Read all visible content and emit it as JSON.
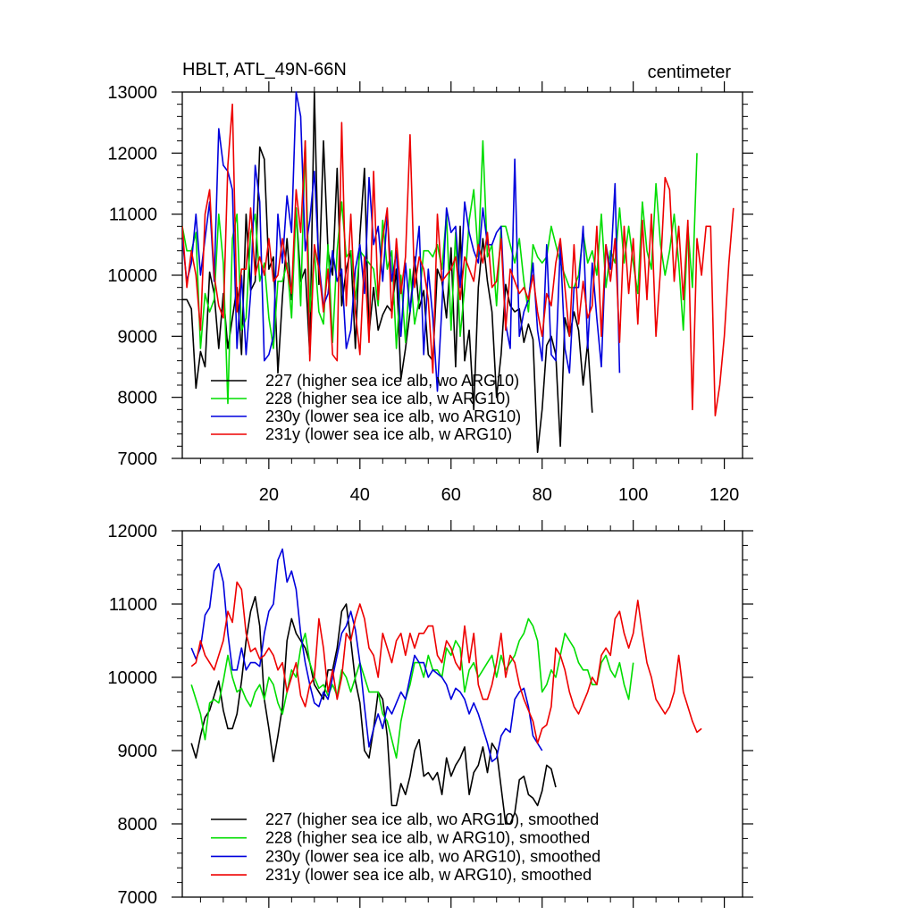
{
  "chart_data": [
    {
      "type": "line",
      "title": "HBLT, ATL_49N-66N",
      "units": "centimeter",
      "xlabel": "",
      "ylabel": "",
      "xlim": [
        1,
        124
      ],
      "ylim": [
        7000,
        13000
      ],
      "xticks": [
        20,
        40,
        60,
        80,
        100,
        120
      ],
      "yticks": [
        7000,
        8000,
        9000,
        10000,
        11000,
        12000,
        13000
      ],
      "x_tick_labels": [
        "20",
        "40",
        "60",
        "80",
        "100",
        "120"
      ],
      "y_tick_labels": [
        "7000",
        "8000",
        "9000",
        "10000",
        "11000",
        "12000",
        "13000"
      ],
      "legend_position": "bottom-left",
      "series": [
        {
          "name": "227 (higher sea ice alb, wo ARG10)",
          "color": "#000000",
          "x_start": 1,
          "values": [
            9600,
            9600,
            9450,
            8150,
            8750,
            8500,
            10050,
            9700,
            8800,
            9700,
            8800,
            9300,
            9800,
            8700,
            11000,
            9750,
            9900,
            12100,
            11900,
            10100,
            10300,
            8400,
            9650,
            10600,
            9600,
            11100,
            9900,
            10100,
            8700,
            13000,
            9850,
            12200,
            10400,
            10000,
            11750,
            9500,
            10100,
            10400,
            8800,
            10650,
            11750,
            9050,
            9800,
            9100,
            9350,
            9500,
            9400,
            10100,
            8300,
            8800,
            9400,
            10300,
            9450,
            9750,
            8700,
            8600,
            10100,
            9900,
            9300,
            10450,
            8500,
            10800,
            8600,
            9100,
            7800,
            9800,
            10600,
            9900,
            9400,
            8000,
            8700,
            9850,
            9500,
            9400,
            9450,
            8900,
            9200,
            8950,
            7100,
            7800,
            8850,
            9000,
            8700,
            7200,
            9300,
            9000,
            9400,
            9100,
            8200,
            8900,
            7750
          ]
        },
        {
          "name": "228 (higher sea ice alb, w ARG10)",
          "color": "#00dd00",
          "x_start": 1,
          "values": [
            10800,
            10400,
            10400,
            10700,
            8800,
            9700,
            9400,
            9600,
            11000,
            10200,
            7900,
            10600,
            11000,
            9100,
            9300,
            10700,
            11000,
            9900,
            10200,
            9300,
            8800,
            9900,
            9900,
            10200,
            9300,
            11100,
            9500,
            12200,
            9400,
            10400,
            9400,
            9200,
            10500,
            8900,
            10400,
            11200,
            10300,
            10400,
            9600,
            10400,
            10300,
            10200,
            10100,
            9500,
            10900,
            10100,
            10400,
            8800,
            10000,
            8900,
            10100,
            9200,
            9600,
            10400,
            10400,
            10300,
            10500,
            10100,
            11000,
            9100,
            10700,
            9000,
            9800,
            10900,
            11400,
            10300,
            12200,
            10300,
            10500,
            9500,
            10800,
            10800,
            10500,
            10200,
            10600,
            9900,
            9400,
            10500,
            10300,
            10200,
            10300,
            10800,
            10500,
            10200,
            10000,
            9800,
            9800,
            10000,
            10700,
            10200,
            10400,
            10000,
            11000,
            9800,
            10400,
            10200,
            11100,
            10200,
            10800,
            10200,
            9700,
            11200,
            10400,
            10100,
            11500,
            10500,
            10000,
            10400,
            11000,
            10200,
            9100,
            10800,
            9800,
            12000
          ]
        },
        {
          "name": "230y (lower sea ice alb, wo ARG10)",
          "color": "#0000dd",
          "x_start": 1,
          "values": [
            10600,
            9900,
            10200,
            11000,
            10000,
            10600,
            11200,
            9900,
            12400,
            11800,
            11700,
            11400,
            8800,
            10000,
            8700,
            9700,
            11800,
            11200,
            8600,
            8700,
            9000,
            11000,
            10200,
            11300,
            10700,
            13000,
            12600,
            10400,
            10900,
            11700,
            10200,
            9500,
            9700,
            10400,
            9900,
            10100,
            8800,
            9100,
            10100,
            10500,
            9700,
            11600,
            10500,
            10800,
            9900,
            11000,
            9900,
            10400,
            9000,
            10200,
            9400,
            10100,
            10800,
            8700,
            10100,
            9300,
            8100,
            9500,
            11100,
            10700,
            10800,
            9800,
            11200,
            10700,
            10400,
            10200,
            11100,
            10500,
            10500,
            10700,
            10800,
            9200,
            8800,
            11900,
            9000,
            9400,
            9600,
            10200,
            9100,
            8600,
            10500,
            8700,
            8600,
            10500,
            8800,
            8400,
            9800,
            9800,
            10800,
            8800,
            10200,
            9300,
            8500,
            10500,
            10100,
            11500,
            8400
          ]
        },
        {
          "name": "231y (lower sea ice alb, w ARG10)",
          "color": "#ee0000",
          "x_start": 1,
          "values": [
            10800,
            9800,
            10400,
            10000,
            9100,
            11000,
            11400,
            10000,
            9500,
            9300,
            11800,
            12800,
            9400,
            10100,
            10100,
            11100,
            10000,
            10300,
            10000,
            10600,
            9900,
            10000,
            10600,
            10100,
            9700,
            11400,
            10700,
            12200,
            8600,
            10500,
            10100,
            9400,
            10100,
            8700,
            8600,
            12500,
            9500,
            11000,
            9400,
            8700,
            10300,
            8900,
            11700,
            9600,
            10600,
            11100,
            9300,
            10600,
            9700,
            10300,
            12300,
            9800,
            10300,
            10100,
            9600,
            8400,
            11000,
            9900,
            10000,
            10100,
            10300,
            9600,
            10300,
            10100,
            9900,
            10500,
            10200,
            10700,
            9800,
            9900,
            10600,
            9100,
            10100,
            9900,
            9700,
            9800,
            9600,
            10000,
            9400,
            9000,
            9700,
            9500,
            10200,
            10600,
            9800,
            9000,
            10500,
            9200,
            9900,
            9300,
            9500,
            10800,
            9000,
            10500,
            9900,
            10600,
            8900,
            10800,
            9700,
            10600,
            9200,
            10900,
            9600,
            11000,
            9000,
            10100,
            11600,
            11400,
            9900,
            10800,
            9600,
            10900,
            7800,
            10600,
            10000,
            10800,
            10800,
            7700,
            8200,
            9000,
            10200,
            11100
          ]
        }
      ]
    },
    {
      "type": "line",
      "title": "",
      "xlabel": "",
      "ylabel": "",
      "xlim": [
        1,
        124
      ],
      "ylim": [
        7000,
        12000
      ],
      "xticks": [
        20,
        40,
        60,
        80,
        100,
        120
      ],
      "yticks": [
        7000,
        8000,
        9000,
        10000,
        11000,
        12000
      ],
      "y_tick_labels": [
        "7000",
        "8000",
        "9000",
        "10000",
        "11000",
        "12000"
      ],
      "legend_position": "bottom-left",
      "series": [
        {
          "name": "227 (higher sea ice alb, wo ARG10), smoothed",
          "color": "#000000",
          "x_start": 3,
          "values": [
            9100,
            8900,
            9200,
            9450,
            9550,
            9750,
            9950,
            9550,
            9300,
            9300,
            9500,
            9950,
            10500,
            10900,
            11100,
            10700,
            9700,
            9300,
            8850,
            9200,
            9600,
            10500,
            10800,
            10600,
            10500,
            10400,
            10200,
            9900,
            9800,
            9700,
            10100,
            10100,
            10400,
            10900,
            11000,
            10500,
            9950,
            9650,
            9000,
            8900,
            9300,
            9800,
            9700,
            9200,
            8250,
            8250,
            8550,
            8400,
            8650,
            9000,
            9150,
            8650,
            8700,
            8600,
            8700,
            8400,
            8900,
            8650,
            8800,
            8900,
            9050,
            8400,
            8700,
            8800,
            9050,
            8700,
            9100,
            9000,
            8500,
            8000,
            8000,
            8150,
            8600,
            8650,
            8400,
            8350,
            8250,
            8450,
            8800,
            8750,
            8500
          ]
        },
        {
          "name": "228 (higher sea ice alb, w ARG10), smoothed",
          "color": "#00dd00",
          "x_start": 3,
          "values": [
            9900,
            9700,
            9500,
            9150,
            9650,
            9700,
            9650,
            9950,
            10300,
            10000,
            9800,
            9850,
            9700,
            9600,
            9800,
            9900,
            9700,
            10000,
            9900,
            9650,
            9500,
            9800,
            10100,
            10000,
            10400,
            10600,
            10200,
            10000,
            9850,
            9900,
            9750,
            9900,
            9750,
            10100,
            10000,
            9800,
            10000,
            10200,
            10000,
            9800,
            9800,
            9800,
            9500,
            9400,
            9150,
            8900,
            9400,
            9700,
            9900,
            10200,
            10200,
            10000,
            10300,
            10100,
            10100,
            10000,
            10400,
            10300,
            10500,
            10400,
            9800,
            10100,
            10200,
            10000,
            10100,
            10200,
            10300,
            10000,
            10300,
            10100,
            10200,
            10300,
            10500,
            10600,
            10800,
            10700,
            10500,
            9800,
            9900,
            10100,
            10000,
            10300,
            10600,
            10500,
            10400,
            10200,
            10100,
            10100,
            9900,
            9900,
            10200,
            10300,
            10100,
            10000,
            10200,
            9900,
            9700,
            10200
          ]
        },
        {
          "name": "230y (lower sea ice alb, wo ARG10), smoothed",
          "color": "#0000dd",
          "x_start": 3,
          "values": [
            10400,
            10250,
            10400,
            10850,
            10950,
            11450,
            11550,
            11300,
            10600,
            10100,
            10100,
            10400,
            10100,
            10200,
            10200,
            10150,
            10600,
            10900,
            11000,
            11600,
            11750,
            11300,
            11450,
            11200,
            10600,
            10200,
            9900,
            9650,
            9600,
            9800,
            9700,
            10000,
            10300,
            10600,
            10700,
            10900,
            10650,
            10200,
            9600,
            9050,
            9300,
            9500,
            9300,
            9600,
            9500,
            9650,
            9800,
            9700,
            10000,
            10300,
            10200,
            10200,
            10000,
            10100,
            10050,
            10000,
            9900,
            9700,
            9850,
            9800,
            9700,
            9500,
            9650,
            9500,
            9300,
            9100,
            8850,
            8900,
            9200,
            9300,
            9250,
            9700,
            9800,
            9850,
            9600,
            9200,
            9100,
            9000
          ]
        },
        {
          "name": "231y (lower sea ice alb, w ARG10), smoothed",
          "color": "#ee0000",
          "x_start": 3,
          "values": [
            10150,
            10200,
            10500,
            10300,
            10200,
            10100,
            10300,
            10500,
            10900,
            10750,
            11300,
            11200,
            10600,
            10350,
            10400,
            10250,
            10300,
            10400,
            10300,
            10100,
            10200,
            9800,
            10000,
            10200,
            9750,
            9600,
            9900,
            10000,
            10800,
            10400,
            9800,
            10100,
            9700,
            10000,
            10600,
            10500,
            10800,
            11000,
            10800,
            10400,
            10300,
            10000,
            10600,
            10400,
            10200,
            10500,
            10600,
            10300,
            10600,
            10400,
            10600,
            10600,
            10700,
            10700,
            10300,
            10200,
            10500,
            10400,
            10200,
            10100,
            10700,
            10200,
            10600,
            9900,
            9700,
            9700,
            9900,
            10200,
            10600,
            10000,
            10300,
            10200,
            9900,
            9700,
            9550,
            9400,
            9100,
            9300,
            9350,
            9600,
            10400,
            10300,
            10100,
            9800,
            9600,
            9500,
            9650,
            9800,
            10000,
            9900,
            10300,
            10400,
            10300,
            10800,
            10900,
            10600,
            10400,
            10600,
            11050,
            10600,
            10200,
            10000,
            9700,
            9600,
            9500,
            9600,
            9800,
            10300,
            9800,
            9600,
            9400,
            9250,
            9300
          ]
        }
      ]
    }
  ]
}
